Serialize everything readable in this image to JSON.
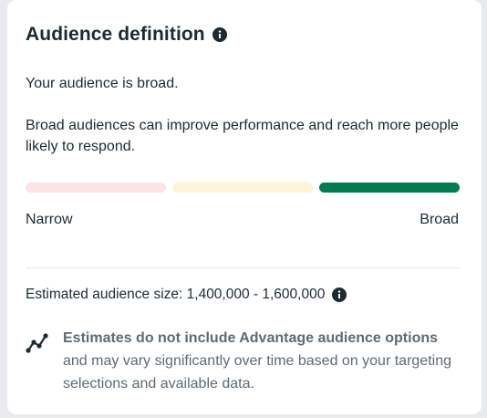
{
  "audience": {
    "title": "Audience definition",
    "title_info_icon": "info-icon",
    "status_text": "Your audience is broad.",
    "description": "Broad audiences can improve performance and reach more people likely to respond.",
    "meter": {
      "level": "broad",
      "segments": [
        {
          "name": "narrow",
          "color": "#fce3e6"
        },
        {
          "name": "medium",
          "color": "#fdf3d6"
        },
        {
          "name": "broad",
          "color": "#007c55"
        }
      ],
      "label_narrow": "Narrow",
      "label_broad": "Broad"
    },
    "estimate": {
      "label": "Estimated audience size:",
      "value": "1,400,000 - 1,600,000",
      "info_icon": "info-icon"
    },
    "note": {
      "icon": "trend-line-icon",
      "bold_text": "Estimates do not include Advantage audience options",
      "rest_text": " and may vary significantly over time based on your targeting selections and available data."
    }
  }
}
